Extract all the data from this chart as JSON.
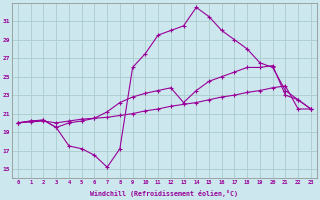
{
  "xlabel": "Windchill (Refroidissement éolien,°C)",
  "bg_color": "#cce8ee",
  "grid_color": "#aacccc",
  "line_color": "#990099",
  "x_ticks": [
    0,
    1,
    2,
    3,
    4,
    5,
    6,
    7,
    8,
    9,
    10,
    11,
    12,
    13,
    14,
    15,
    16,
    17,
    18,
    19,
    20,
    21,
    22,
    23
  ],
  "y_ticks": [
    15,
    17,
    19,
    21,
    23,
    25,
    27,
    29,
    31
  ],
  "ylim": [
    14.0,
    33.0
  ],
  "xlim": [
    -0.5,
    23.5
  ],
  "line1_x": [
    0,
    1,
    2,
    3,
    4,
    5,
    6,
    7,
    8,
    9,
    10,
    11,
    12,
    13,
    14,
    15,
    16,
    17,
    18,
    19,
    20,
    21,
    22,
    23
  ],
  "line1_y": [
    20.0,
    20.2,
    20.3,
    19.5,
    17.5,
    17.2,
    16.5,
    15.2,
    17.2,
    26.0,
    27.5,
    29.5,
    30.0,
    30.5,
    32.5,
    31.5,
    30.0,
    29.0,
    28.0,
    26.5,
    26.0,
    23.5,
    22.5,
    21.5
  ],
  "line2_x": [
    0,
    1,
    2,
    3,
    4,
    5,
    6,
    7,
    8,
    9,
    10,
    11,
    12,
    13,
    14,
    15,
    16,
    17,
    18,
    19,
    20,
    21,
    22,
    23
  ],
  "line2_y": [
    20.0,
    20.2,
    20.3,
    19.5,
    20.0,
    20.2,
    20.5,
    21.2,
    22.2,
    22.8,
    23.2,
    23.5,
    23.8,
    22.2,
    23.5,
    24.5,
    25.0,
    25.5,
    26.0,
    26.0,
    26.2,
    23.0,
    22.5,
    21.5
  ],
  "line3_x": [
    0,
    1,
    2,
    3,
    4,
    5,
    6,
    7,
    8,
    9,
    10,
    11,
    12,
    13,
    14,
    15,
    16,
    17,
    18,
    19,
    20,
    21,
    22,
    23
  ],
  "line3_y": [
    20.0,
    20.1,
    20.2,
    20.0,
    20.2,
    20.4,
    20.5,
    20.6,
    20.8,
    21.0,
    21.3,
    21.5,
    21.8,
    22.0,
    22.2,
    22.5,
    22.8,
    23.0,
    23.3,
    23.5,
    23.8,
    24.0,
    21.5,
    21.5
  ]
}
